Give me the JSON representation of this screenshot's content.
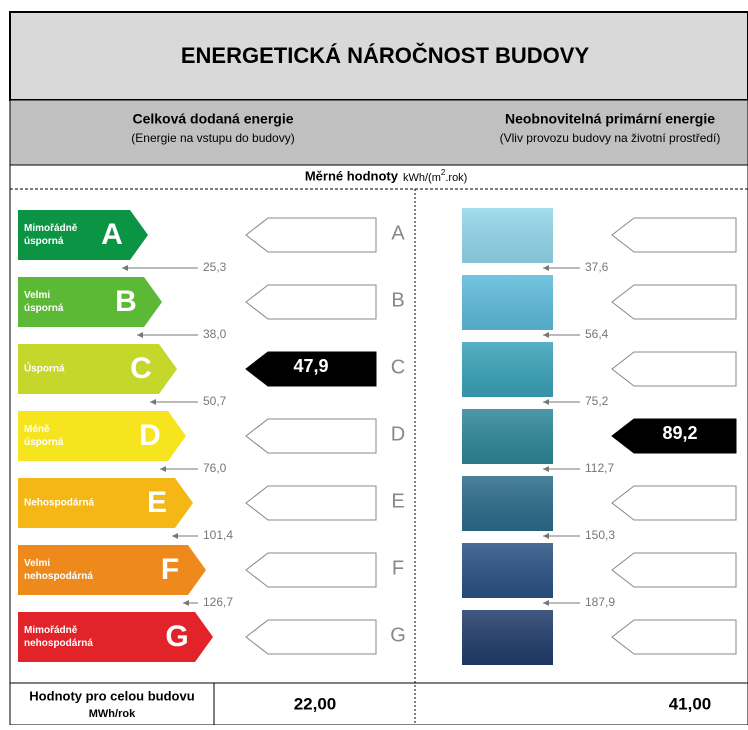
{
  "title": "ENERGETICKÁ NÁROČNOST BUDOVY",
  "left_header": {
    "title": "Celková dodaná energie",
    "subtitle": "(Energie na vstupu do budovy)"
  },
  "right_header": {
    "title": "Neobnovitelná primární energie",
    "subtitle": "(Vliv provozu budovy na životní prostředí)"
  },
  "units": {
    "label": "Měrné hodnoty",
    "prefix": "kWh/(m",
    "sup": "2",
    "suffix": ".rok)"
  },
  "classes": [
    {
      "letter": "A",
      "label": [
        "Mimořádně",
        "úsporná"
      ],
      "color": "#0b9444",
      "blue": "#93d8ec"
    },
    {
      "letter": "B",
      "label": [
        "Velmi",
        "úsporná"
      ],
      "color": "#5cb935",
      "blue": "#5ebcdc"
    },
    {
      "letter": "C",
      "label": [
        "Úsporná"
      ],
      "color": "#c5d72b",
      "blue": "#3aa3ba"
    },
    {
      "letter": "D",
      "label": [
        "Méně",
        "úsporná"
      ],
      "color": "#f6e51e",
      "blue": "#2e8799"
    },
    {
      "letter": "E",
      "label": [
        "Nehospodárná"
      ],
      "color": "#f4b716",
      "blue": "#2b6c8b"
    },
    {
      "letter": "F",
      "label": [
        "Velmi",
        "nehospodárná"
      ],
      "color": "#ee8a1b",
      "blue": "#2a5384"
    },
    {
      "letter": "G",
      "label": [
        "Mimořádně",
        "nehospodárná"
      ],
      "color": "#e3232a",
      "blue": "#213d6c"
    }
  ],
  "left_bounds": [
    "25,3",
    "38,0",
    "50,7",
    "76,0",
    "101,4",
    "126,7"
  ],
  "right_bounds": [
    "37,6",
    "56,4",
    "75,2",
    "112,7",
    "150,3",
    "187,9"
  ],
  "left_value": {
    "class": "C",
    "text": "47,9"
  },
  "right_value": {
    "class": "D",
    "text": "89,2"
  },
  "footer": {
    "label": "Hodnoty pro celou budovu",
    "unit": "MWh/rok",
    "left": "22,00",
    "right": "41,00"
  }
}
